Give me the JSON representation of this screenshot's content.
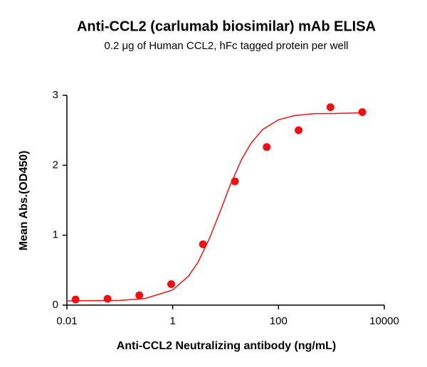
{
  "chart_data": {
    "type": "scatter",
    "title": "Anti-CCL2 (carlumab biosimilar) mAb ELISA",
    "subtitle": "0.2 μg of Human CCL2, hFc tagged protein per well",
    "x_label": "Anti-CCL2 Neutralizing antibody (ng/mL)",
    "y_label": "Mean Abs.(OD450)",
    "xscale": "log",
    "xlim": [
      0.01,
      10000
    ],
    "xticks": [
      0.01,
      1,
      100,
      10000
    ],
    "ylim": [
      0,
      3
    ],
    "yticks": [
      0,
      1,
      2,
      3
    ],
    "series": [
      {
        "style": "points",
        "color": "#ee1111",
        "x": [
          0.0146,
          0.0586,
          0.234,
          0.9375,
          3.75,
          15,
          60,
          240,
          960,
          3840
        ],
        "values": [
          0.08,
          0.09,
          0.14,
          0.3,
          0.87,
          1.77,
          2.26,
          2.5,
          2.83,
          2.76
        ]
      },
      {
        "style": "line",
        "color": "#ee1111",
        "x": [
          0.01,
          0.1,
          0.3,
          1,
          2,
          3,
          5,
          8,
          12,
          20,
          30,
          50,
          100,
          200,
          500,
          1000,
          3840
        ],
        "values": [
          0.06,
          0.068,
          0.094,
          0.216,
          0.416,
          0.61,
          0.96,
          1.35,
          1.7,
          2.08,
          2.31,
          2.51,
          2.65,
          2.71,
          2.74,
          2.74,
          2.75
        ]
      }
    ]
  }
}
